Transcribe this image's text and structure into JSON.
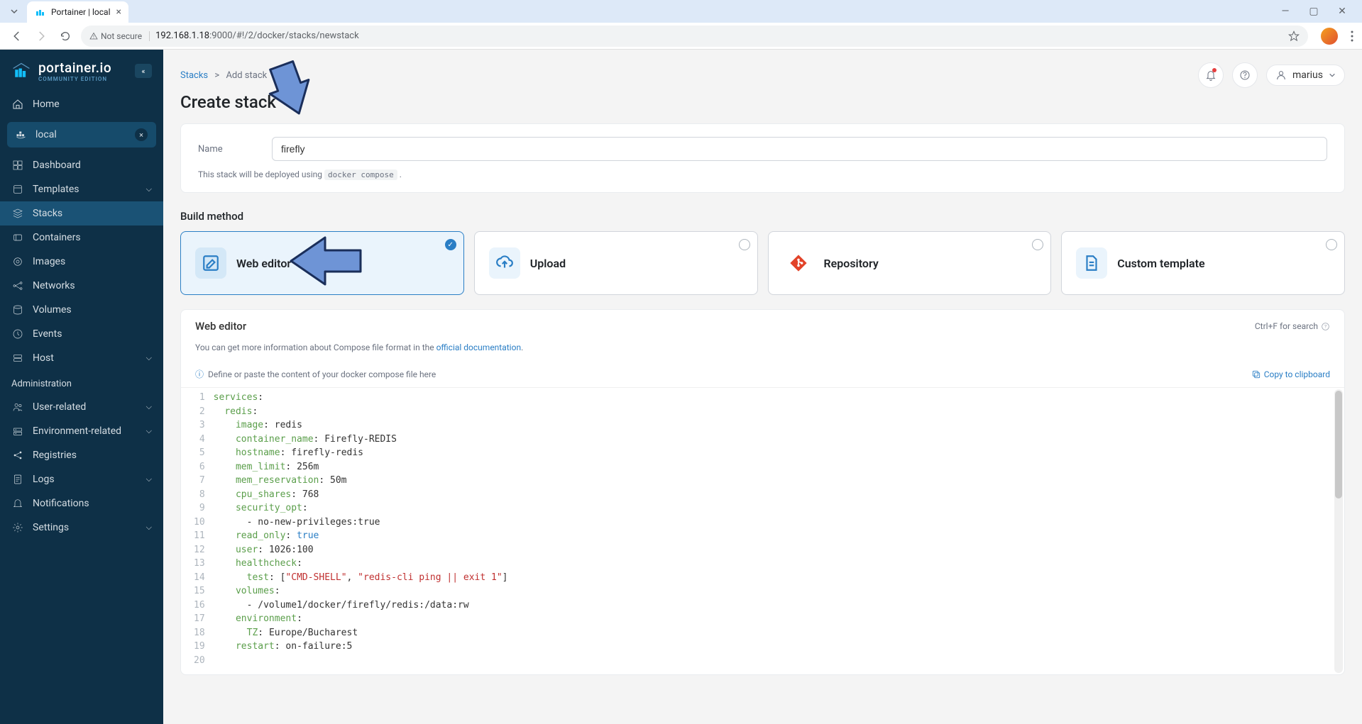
{
  "browser": {
    "tab_title": "Portainer | local",
    "not_secure_label": "Not secure",
    "url_host": "192.168.1.18",
    "url_path": ":9000/#!/2/docker/stacks/newstack"
  },
  "sidebar": {
    "logo_main": "portainer.io",
    "logo_sub": "COMMUNITY EDITION",
    "home": "Home",
    "env_label": "local",
    "items": [
      {
        "label": "Dashboard"
      },
      {
        "label": "Templates",
        "chevron": true
      },
      {
        "label": "Stacks",
        "active": true
      },
      {
        "label": "Containers"
      },
      {
        "label": "Images"
      },
      {
        "label": "Networks"
      },
      {
        "label": "Volumes"
      },
      {
        "label": "Events"
      },
      {
        "label": "Host",
        "chevron": true
      }
    ],
    "admin_label": "Administration",
    "admin_items": [
      {
        "label": "User-related",
        "chevron": true
      },
      {
        "label": "Environment-related",
        "chevron": true
      },
      {
        "label": "Registries"
      },
      {
        "label": "Logs",
        "chevron": true
      },
      {
        "label": "Notifications"
      },
      {
        "label": "Settings",
        "chevron": true
      }
    ]
  },
  "breadcrumb": {
    "root": "Stacks",
    "sep": ">",
    "current": "Add stack"
  },
  "page_title": "Create stack",
  "user_name": "marius",
  "form": {
    "name_label": "Name",
    "name_value": "firefly",
    "helper_pre": "This stack will be deployed using ",
    "helper_code": "docker compose",
    "helper_post": " ."
  },
  "build": {
    "section_title": "Build method",
    "methods": [
      {
        "title": "Web editor",
        "selected": true,
        "icon_color": "#2a7ec5",
        "icon": "edit"
      },
      {
        "title": "Upload",
        "selected": false,
        "icon_color": "#2a7ec5",
        "icon": "upload"
      },
      {
        "title": "Repository",
        "selected": false,
        "icon_color": "#e24329",
        "icon": "git"
      },
      {
        "title": "Custom template",
        "selected": false,
        "icon_color": "#2a7ec5",
        "icon": "file"
      }
    ]
  },
  "editor": {
    "title": "Web editor",
    "search_hint": "Ctrl+F for search",
    "sub_pre": "You can get more information about Compose file format in the ",
    "sub_link": "official documentation",
    "sub_post": ".",
    "placeholder_hint": "Define or paste the content of your docker compose file here",
    "copy_label": "Copy to clipboard",
    "lines": [
      [
        {
          "t": "key",
          "v": "services"
        },
        {
          "t": "p",
          "v": ":"
        }
      ],
      [
        {
          "t": "sp",
          "v": "  "
        },
        {
          "t": "key",
          "v": "redis"
        },
        {
          "t": "p",
          "v": ":"
        }
      ],
      [
        {
          "t": "sp",
          "v": "    "
        },
        {
          "t": "key",
          "v": "image"
        },
        {
          "t": "p",
          "v": ": "
        },
        {
          "t": "val",
          "v": "redis"
        }
      ],
      [
        {
          "t": "sp",
          "v": "    "
        },
        {
          "t": "key",
          "v": "container_name"
        },
        {
          "t": "p",
          "v": ": "
        },
        {
          "t": "val",
          "v": "Firefly-REDIS"
        }
      ],
      [
        {
          "t": "sp",
          "v": "    "
        },
        {
          "t": "key",
          "v": "hostname"
        },
        {
          "t": "p",
          "v": ": "
        },
        {
          "t": "val",
          "v": "firefly-redis"
        }
      ],
      [
        {
          "t": "sp",
          "v": "    "
        },
        {
          "t": "key",
          "v": "mem_limit"
        },
        {
          "t": "p",
          "v": ": "
        },
        {
          "t": "val",
          "v": "256m"
        }
      ],
      [
        {
          "t": "sp",
          "v": "    "
        },
        {
          "t": "key",
          "v": "mem_reservation"
        },
        {
          "t": "p",
          "v": ": "
        },
        {
          "t": "val",
          "v": "50m"
        }
      ],
      [
        {
          "t": "sp",
          "v": "    "
        },
        {
          "t": "key",
          "v": "cpu_shares"
        },
        {
          "t": "p",
          "v": ": "
        },
        {
          "t": "val",
          "v": "768"
        }
      ],
      [
        {
          "t": "sp",
          "v": "    "
        },
        {
          "t": "key",
          "v": "security_opt"
        },
        {
          "t": "p",
          "v": ":"
        }
      ],
      [
        {
          "t": "sp",
          "v": "      "
        },
        {
          "t": "p",
          "v": "- "
        },
        {
          "t": "val",
          "v": "no-new-privileges:true"
        }
      ],
      [
        {
          "t": "sp",
          "v": "    "
        },
        {
          "t": "key",
          "v": "read_only"
        },
        {
          "t": "p",
          "v": ": "
        },
        {
          "t": "bool",
          "v": "true"
        }
      ],
      [
        {
          "t": "sp",
          "v": "    "
        },
        {
          "t": "key",
          "v": "user"
        },
        {
          "t": "p",
          "v": ": "
        },
        {
          "t": "val",
          "v": "1026:100"
        }
      ],
      [
        {
          "t": "sp",
          "v": "    "
        },
        {
          "t": "key",
          "v": "healthcheck"
        },
        {
          "t": "p",
          "v": ":"
        }
      ],
      [
        {
          "t": "sp",
          "v": "      "
        },
        {
          "t": "key",
          "v": "test"
        },
        {
          "t": "p",
          "v": ": ["
        },
        {
          "t": "str",
          "v": "\"CMD-SHELL\""
        },
        {
          "t": "p",
          "v": ", "
        },
        {
          "t": "str",
          "v": "\"redis-cli ping || exit 1\""
        },
        {
          "t": "p",
          "v": "]"
        }
      ],
      [
        {
          "t": "sp",
          "v": "    "
        },
        {
          "t": "key",
          "v": "volumes"
        },
        {
          "t": "p",
          "v": ":"
        }
      ],
      [
        {
          "t": "sp",
          "v": "      "
        },
        {
          "t": "p",
          "v": "- "
        },
        {
          "t": "val",
          "v": "/volume1/docker/firefly/redis:/data:rw"
        }
      ],
      [
        {
          "t": "sp",
          "v": "    "
        },
        {
          "t": "key",
          "v": "environment"
        },
        {
          "t": "p",
          "v": ":"
        }
      ],
      [
        {
          "t": "sp",
          "v": "      "
        },
        {
          "t": "key",
          "v": "TZ"
        },
        {
          "t": "p",
          "v": ": "
        },
        {
          "t": "val",
          "v": "Europe/Bucharest"
        }
      ],
      [
        {
          "t": "sp",
          "v": "    "
        },
        {
          "t": "key",
          "v": "restart"
        },
        {
          "t": "p",
          "v": ": "
        },
        {
          "t": "val",
          "v": "on-failure:5"
        }
      ],
      []
    ]
  },
  "colors": {
    "sidebar_bg": "#0e3047",
    "accent": "#2a7ec5",
    "arrow_fill": "#6e94d6",
    "arrow_stroke": "#1a2e5a"
  }
}
